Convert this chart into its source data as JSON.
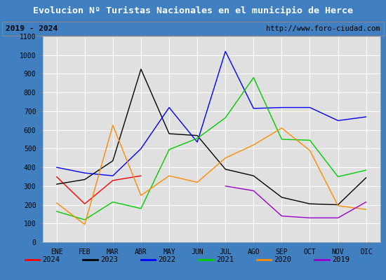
{
  "title": "Evolucion Nº Turistas Nacionales en el municipio de Herce",
  "subtitle_left": "2019 - 2024",
  "subtitle_right": "http://www.foro-ciudad.com",
  "months": [
    "ENE",
    "FEB",
    "MAR",
    "ABR",
    "MAY",
    "JUN",
    "JUL",
    "AGO",
    "SEP",
    "OCT",
    "NOV",
    "DIC"
  ],
  "series": {
    "2024": [
      350,
      205,
      330,
      355,
      null,
      null,
      null,
      null,
      null,
      null,
      null,
      null
    ],
    "2023": [
      310,
      335,
      435,
      925,
      580,
      570,
      390,
      355,
      240,
      205,
      200,
      345
    ],
    "2022": [
      400,
      370,
      355,
      500,
      720,
      535,
      1020,
      715,
      720,
      720,
      650,
      670
    ],
    "2021": [
      165,
      120,
      215,
      180,
      495,
      555,
      665,
      880,
      550,
      545,
      350,
      385
    ],
    "2020": [
      210,
      95,
      625,
      250,
      355,
      320,
      450,
      520,
      610,
      490,
      195,
      175
    ],
    "2019": [
      null,
      null,
      null,
      null,
      null,
      null,
      300,
      275,
      140,
      130,
      130,
      215
    ]
  },
  "colors": {
    "2024": "#ff0000",
    "2023": "#000000",
    "2022": "#0000ff",
    "2021": "#00cc00",
    "2020": "#ff8c00",
    "2019": "#9900cc"
  },
  "ylim": [
    0,
    1100
  ],
  "yticks": [
    0,
    100,
    200,
    300,
    400,
    500,
    600,
    700,
    800,
    900,
    1000,
    1100
  ],
  "title_bg": "#4080c0",
  "title_color": "#ffffff",
  "subtitle_bg": "#d0d0d0",
  "plot_bg": "#e0e0e0",
  "outer_bg": "#4080c0",
  "grid_color": "#ffffff",
  "legend_years": [
    "2024",
    "2023",
    "2022",
    "2021",
    "2020",
    "2019"
  ]
}
